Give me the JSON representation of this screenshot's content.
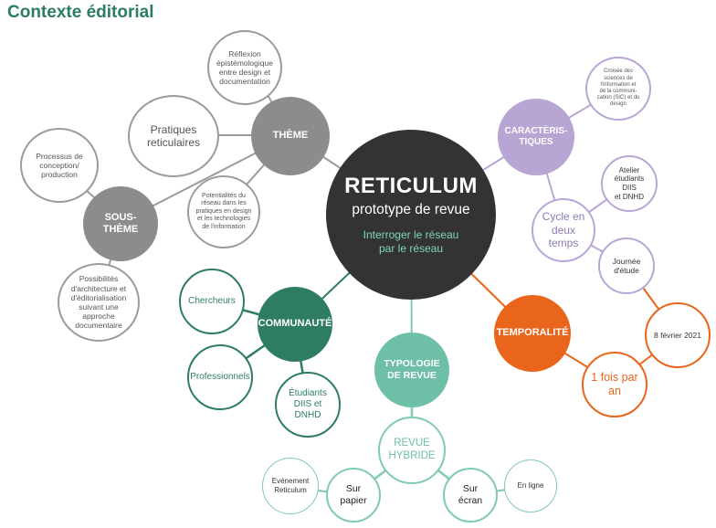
{
  "title": "Contexte éditorial",
  "central": {
    "name": "RETICULUM",
    "subtitle": "prototype de revue",
    "tagline_1": "Interroger le réseau",
    "tagline_2": "par le réseau"
  },
  "theme": {
    "label": "THÈME",
    "reflexion": [
      "Réflexion",
      "épistémologique",
      "entre design et",
      "documentation"
    ],
    "pratiques": [
      "Pratiques",
      "reticulaires"
    ],
    "potentialites": [
      "Potentialités du",
      "réseau dans les",
      "pratiques en design",
      "et les technologies",
      "de l'information"
    ]
  },
  "sous_theme": {
    "label": [
      "SOUS-",
      "THÈME"
    ],
    "processus": [
      "Processus de",
      "conception/",
      "production"
    ],
    "possibilites": [
      "Possibilités",
      "d'architecture et",
      "d'éditorialisation",
      "suivant une",
      "approche",
      "documentaire"
    ]
  },
  "caracteristiques": {
    "label": [
      "CARACTÈRIS-",
      "TIQUES"
    ],
    "croisee": [
      "Croisée des",
      "sciences de",
      "l'information et",
      "de la communi-",
      "cation (SIC) et du",
      "design"
    ],
    "cycle": [
      "Cycle en",
      "deux",
      "temps"
    ],
    "atelier": [
      "Atelier",
      "étudiants DIIS",
      "et DNHD"
    ],
    "journee": [
      "Journée",
      "d'étude"
    ]
  },
  "temporalite": {
    "label": "TEMPORALITÉ",
    "date": "8 février 2021",
    "frequence": [
      "1 fois par",
      "an"
    ]
  },
  "communaute": {
    "label": "COMMUNAUTÉ",
    "chercheurs": "Chercheurs",
    "professionnels": "Professionnels",
    "etudiants": [
      "Étudiants",
      "DIIS et DNHD"
    ]
  },
  "typologie": {
    "label": [
      "TYPOLOGIE",
      "DE REVUE"
    ],
    "hybride": [
      "REVUE",
      "HYBRIDE"
    ],
    "papier": [
      "Sur",
      "papier"
    ],
    "ecran": [
      "Sur",
      "écran"
    ],
    "evenement": [
      "Evénement",
      "Reticulum"
    ],
    "en_ligne": "En ligne"
  },
  "colors": {
    "title_green": "#2e7d63",
    "central": "#333333",
    "grey": "#8c8c8c",
    "lavender": "#b7a5d3",
    "dark_green": "#2e7d63",
    "orange": "#e9651c",
    "mint": "#6ebfa7"
  }
}
